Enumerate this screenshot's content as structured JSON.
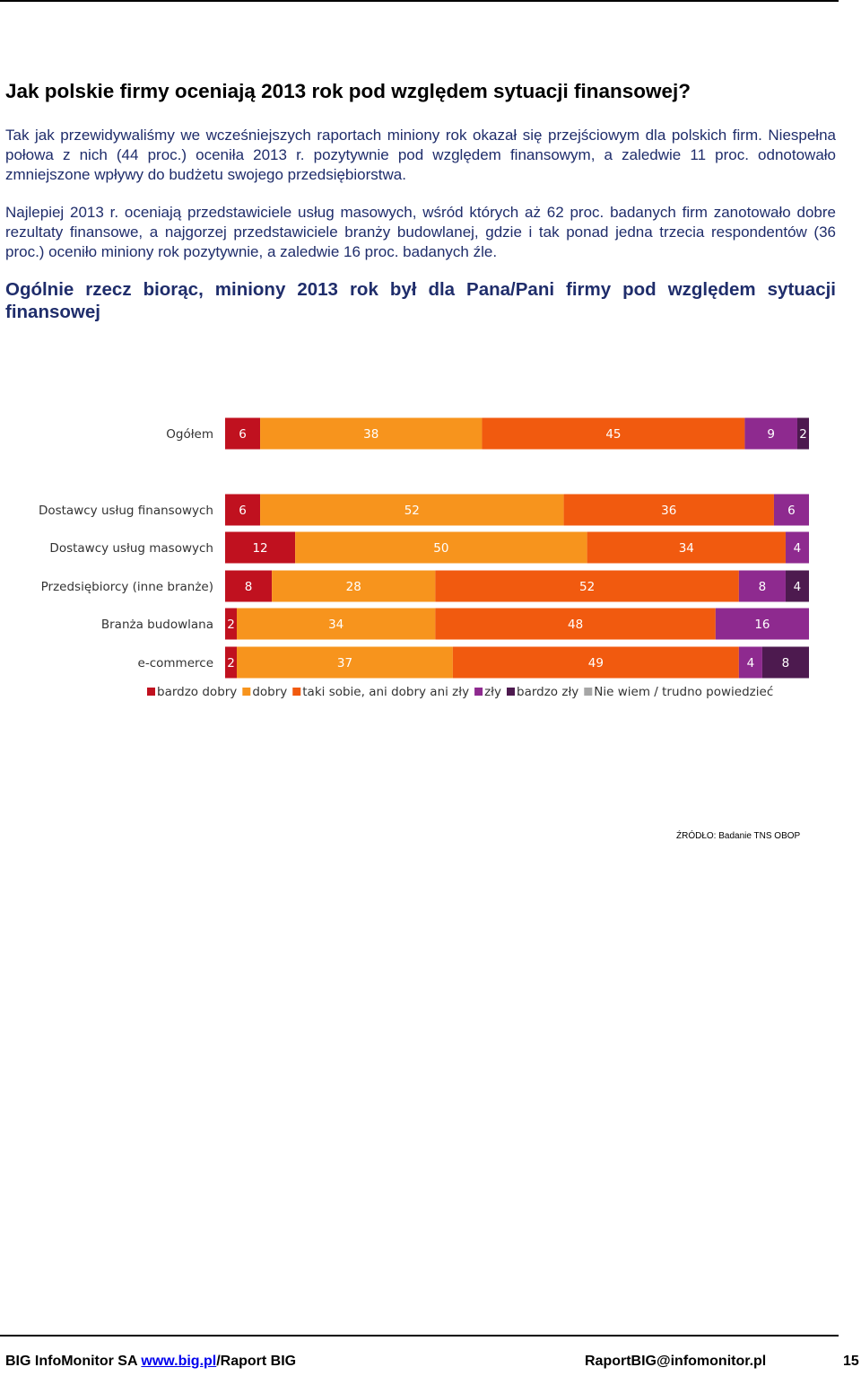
{
  "heading": "Jak polskie firmy oceniają 2013 rok pod względem sytuacji finansowej?",
  "intro": "Tak jak przewidywaliśmy we wcześniejszych raportach miniony rok okazał się przejściowym dla polskich firm. Niespełna połowa z nich (44 proc.) oceniła 2013 r. pozytywnie pod względem finansowym, a zaledwie 11 proc. odnotowało zmniejszone wpływy do budżetu swojego przedsiębiorstwa.",
  "detail": "Najlepiej 2013 r. oceniają przedstawiciele usług masowych, wśród których aż 62 proc. badanych firm zanotowało dobre rezultaty finansowe, a najgorzej przedstawiciele branży budowlanej, gdzie i tak ponad jedna trzecia respondentów (36 proc.) oceniło miniony rok pozytywnie, a zaledwie 16 proc. badanych źle.",
  "question": "Ogólnie rzecz biorąc, miniony 2013 rok był dla Pana/Pani firmy pod względem sytuacji finansowej",
  "chart_data": {
    "type": "bar",
    "orientation": "horizontal",
    "stacked": true,
    "categories": [
      "Ogółem",
      "Dostawcy usług finansowych",
      "Dostawcy usług masowych",
      "Przedsiębiorcy (inne branże)",
      "Branża budowlana",
      "e-commerce"
    ],
    "series": [
      {
        "name": "bardzo dobry",
        "color": "#c0111f",
        "label_color": "#ffffff",
        "values": [
          6,
          6,
          12,
          8,
          2,
          2
        ]
      },
      {
        "name": "dobry",
        "color": "#f7941d",
        "label_color": "#ffffff",
        "values": [
          38,
          52,
          50,
          28,
          34,
          37
        ]
      },
      {
        "name": "taki sobie, ani dobry ani zły",
        "color": "#f15a0f",
        "label_color": "#ffffff",
        "values": [
          45,
          36,
          34,
          52,
          48,
          49
        ]
      },
      {
        "name": "zły",
        "color": "#8e2a8f",
        "label_color": "#ffffff",
        "values": [
          9,
          6,
          4,
          8,
          16,
          4
        ]
      },
      {
        "name": "bardzo zły",
        "color": "#4d1a4f",
        "label_color": "#ffffff",
        "values": [
          2,
          0,
          0,
          4,
          0,
          8
        ]
      },
      {
        "name": "Nie wiem / trudno powiedzieć",
        "color": "#a6a6a6",
        "label_color": "#ffffff",
        "values": [
          0,
          0,
          0,
          0,
          0,
          0
        ]
      }
    ],
    "legend_position": "bottom",
    "grid": false
  },
  "source": "ŹRÓDŁO: Badanie TNS OBOP",
  "footer": {
    "company": "BIG InfoMonitor SA ",
    "link": "www.big.pl",
    "report": "/Raport BIG",
    "email": "RaportBIG@infomonitor.pl",
    "page": "15"
  }
}
